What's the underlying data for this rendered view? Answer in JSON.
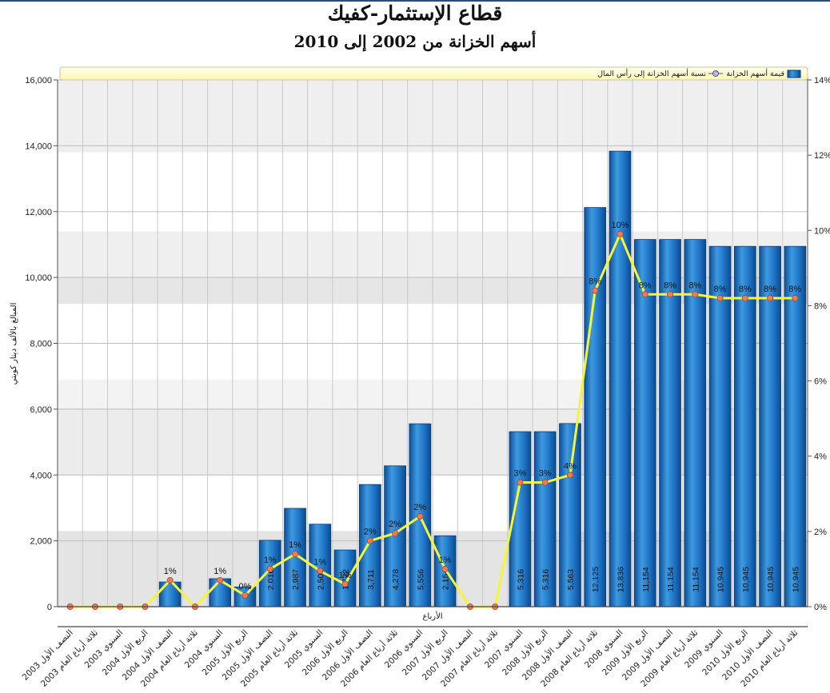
{
  "title": "قطاع الإستثمار-كفيك",
  "subtitle": "أسهم الخزانة من 2002 إلى 2010",
  "chart_data": {
    "type": "bar",
    "title": "قطاع الإستثمار-كفيك",
    "subtitle": "أسهم الخزانة من 2002 إلى 2010",
    "xlabel": "الأرباع",
    "ylabel": "المبالغ بالألف دينار كويتي",
    "ylim": [
      0,
      16000
    ],
    "y2lim": [
      0,
      14
    ],
    "y_ticks": [
      "0",
      "2,000",
      "4,000",
      "6,000",
      "8,000",
      "10,000",
      "12,000",
      "14,000",
      "16,000"
    ],
    "y2_ticks": [
      "0%",
      "2%",
      "4%",
      "6%",
      "8%",
      "10%",
      "12%",
      "14%"
    ],
    "grid": true,
    "legend_position": "top-right",
    "categories": [
      "النصف الأول 2003",
      "ثلاثة أرباع العام 2003",
      "السنوي 2003",
      "الربع الأول 2004",
      "النصف الأول 2004",
      "ثلاثة أرباع العام 2004",
      "السنوي 2004",
      "الربع الأول 2005",
      "النصف الأول 2005",
      "ثلاثة أرباع العام 2005",
      "السنوي 2005",
      "الربع الأول 2006",
      "النصف الأول 2006",
      "ثلاثة أرباع العام 2006",
      "السنوي 2006",
      "الربع الأول 2007",
      "النصف الأول 2007",
      "ثلاثة أرباع العام 2007",
      "السنوي 2007",
      "الربع الأول 2008",
      "النصف الأول 2008",
      "ثلاثة أرباع العام 2008",
      "السنوي 2008",
      "الربع الأول 2009",
      "النصف الأول 2009",
      "ثلاثة أرباع العام 2009",
      "السنوي 2009",
      "الربع الأول 2010",
      "النصف الأول 2010",
      "ثلاثة أرباع العام 2010"
    ],
    "series": [
      {
        "name": "قيمة أسهم الخزانة",
        "type": "bar",
        "axis": "left",
        "color": "#1f6fbf",
        "values": [
          0,
          0,
          0,
          0,
          750,
          0,
          850,
          600,
          2016,
          2987,
          2506,
          1722,
          3711,
          4278,
          5556,
          2154,
          0,
          0,
          5316,
          5316,
          5563,
          12125,
          13836,
          11154,
          11154,
          11154,
          10945,
          10945,
          10945,
          10945
        ],
        "labels": [
          "",
          "",
          "",
          "",
          "",
          "",
          "",
          "",
          "2,016",
          "2,987",
          "2,506",
          "1,722",
          "3,711",
          "4,278",
          "5,556",
          "2,154",
          "",
          "",
          "5,316",
          "5,316",
          "5,563",
          "12,125",
          "13,836",
          "11,154",
          "11,154",
          "11,154",
          "10,945",
          "10,945",
          "10,945",
          "10,945"
        ]
      },
      {
        "name": "نسبة أسهم الخزانة إلى رأس المال",
        "type": "line",
        "axis": "right",
        "color": "#f0f030",
        "marker_color": "#f07060",
        "values": [
          0,
          0,
          0,
          0,
          0.7,
          0,
          0.7,
          0.3,
          1.0,
          1.4,
          0.95,
          0.6,
          1.75,
          1.95,
          2.4,
          1.0,
          0,
          0,
          3.3,
          3.3,
          3.5,
          8.4,
          9.9,
          8.3,
          8.3,
          8.3,
          8.2,
          8.2,
          8.2,
          8.2
        ],
        "labels": [
          "",
          "",
          "",
          "",
          "1%",
          "",
          "1%",
          "0%",
          "1%",
          "1%",
          "1%",
          "1%",
          "2%",
          "2%",
          "2%",
          "1%",
          "",
          "",
          "3%",
          "3%",
          "4%",
          "8%",
          "10%",
          "8%",
          "8%",
          "8%",
          "8%",
          "8%",
          "8%",
          "8%"
        ]
      }
    ]
  }
}
